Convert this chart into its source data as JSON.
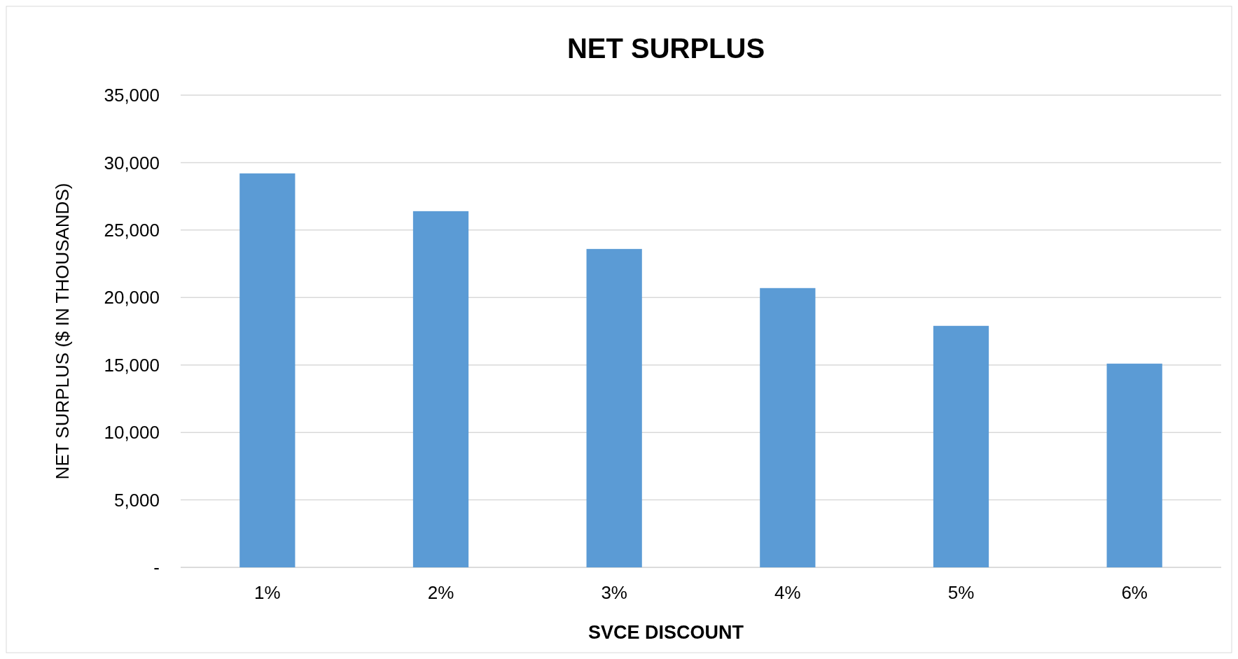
{
  "chart_data": {
    "type": "bar",
    "title": "NET SURPLUS",
    "xlabel": "SVCE DISCOUNT",
    "ylabel": "NET SURPLUS ($ IN THOUSANDS)",
    "categories": [
      "1%",
      "2%",
      "3%",
      "4%",
      "5%",
      "6%"
    ],
    "values": [
      29200,
      26400,
      23600,
      20700,
      17900,
      15100
    ],
    "color": "#5b9bd5",
    "ylim": [
      0,
      35000
    ],
    "yticks": [
      {
        "value": 0,
        "label": "-"
      },
      {
        "value": 5000,
        "label": "5,000"
      },
      {
        "value": 10000,
        "label": "10,000"
      },
      {
        "value": 15000,
        "label": "15,000"
      },
      {
        "value": 20000,
        "label": "20,000"
      },
      {
        "value": 25000,
        "label": "25,000"
      },
      {
        "value": 30000,
        "label": "30,000"
      },
      {
        "value": 35000,
        "label": "35,000"
      }
    ],
    "grid": "y"
  }
}
